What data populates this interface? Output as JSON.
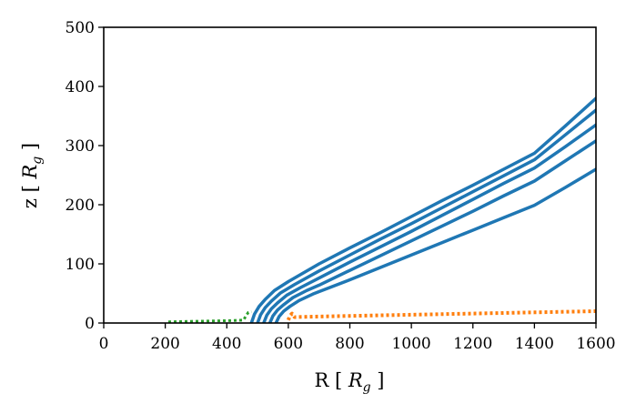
{
  "chart_data": {
    "type": "line",
    "xlabel": "R [ R_g ]",
    "ylabel": "z [ R_g ]",
    "xlim": [
      0,
      1600
    ],
    "ylim": [
      0,
      500
    ],
    "x_ticks": [
      "0",
      "200",
      "400",
      "600",
      "800",
      "1000",
      "1200",
      "1400",
      "1600"
    ],
    "y_ticks": [
      "0",
      "100",
      "200",
      "300",
      "400",
      "500"
    ],
    "grid": false,
    "series": [
      {
        "color": "#1f77b4",
        "style": "solid",
        "x": [
          480,
          490,
          505,
          525,
          555,
          600,
          700,
          800,
          900,
          1000,
          1100,
          1200,
          1300,
          1400,
          1500,
          1600
        ],
        "y": [
          0,
          15,
          28,
          40,
          55,
          70,
          100,
          127,
          153,
          180,
          207,
          233,
          260,
          287,
          333,
          380
        ]
      },
      {
        "color": "#1f77b4",
        "style": "solid",
        "x": [
          500,
          510,
          525,
          545,
          575,
          620,
          700,
          800,
          900,
          1000,
          1100,
          1200,
          1300,
          1400,
          1500,
          1600
        ],
        "y": [
          0,
          14,
          26,
          37,
          51,
          65,
          88,
          115,
          142,
          168,
          195,
          222,
          249,
          276,
          318,
          360
        ]
      },
      {
        "color": "#1f77b4",
        "style": "solid",
        "x": [
          520,
          530,
          545,
          565,
          595,
          640,
          700,
          800,
          900,
          1000,
          1100,
          1200,
          1300,
          1400,
          1500,
          1600
        ],
        "y": [
          0,
          13,
          24,
          34,
          47,
          60,
          76,
          103,
          129,
          155,
          182,
          209,
          236,
          262,
          298,
          335
        ]
      },
      {
        "color": "#1f77b4",
        "style": "solid",
        "x": [
          540,
          550,
          565,
          585,
          615,
          660,
          700,
          800,
          900,
          1000,
          1100,
          1200,
          1300,
          1400,
          1500,
          1600
        ],
        "y": [
          0,
          12,
          22,
          31,
          43,
          55,
          64,
          89,
          114,
          139,
          164,
          189,
          215,
          240,
          274,
          308
        ]
      },
      {
        "color": "#1f77b4",
        "style": "solid",
        "x": [
          560,
          570,
          585,
          605,
          635,
          680,
          700,
          800,
          900,
          1000,
          1100,
          1200,
          1300,
          1400,
          1500,
          1600
        ],
        "y": [
          0,
          11,
          20,
          28,
          38,
          49,
          53,
          73,
          94,
          115,
          136,
          157,
          178,
          199,
          229,
          260
        ]
      },
      {
        "color": "#2ca02c",
        "style": "dotted",
        "x": [
          210,
          260,
          310,
          360,
          410,
          455,
          462,
          470,
          480
        ],
        "y": [
          2,
          2.5,
          3,
          3.5,
          4,
          5,
          12,
          18,
          19
        ]
      },
      {
        "color": "#ff7f0e",
        "style": "dotted",
        "x": [
          600,
          605,
          612,
          620,
          700,
          800,
          900,
          1000,
          1100,
          1200,
          1300,
          1400,
          1500,
          1600
        ],
        "y": [
          5,
          12,
          16,
          10,
          11,
          12,
          13,
          14,
          15,
          16,
          17,
          18,
          19,
          20
        ]
      }
    ]
  }
}
